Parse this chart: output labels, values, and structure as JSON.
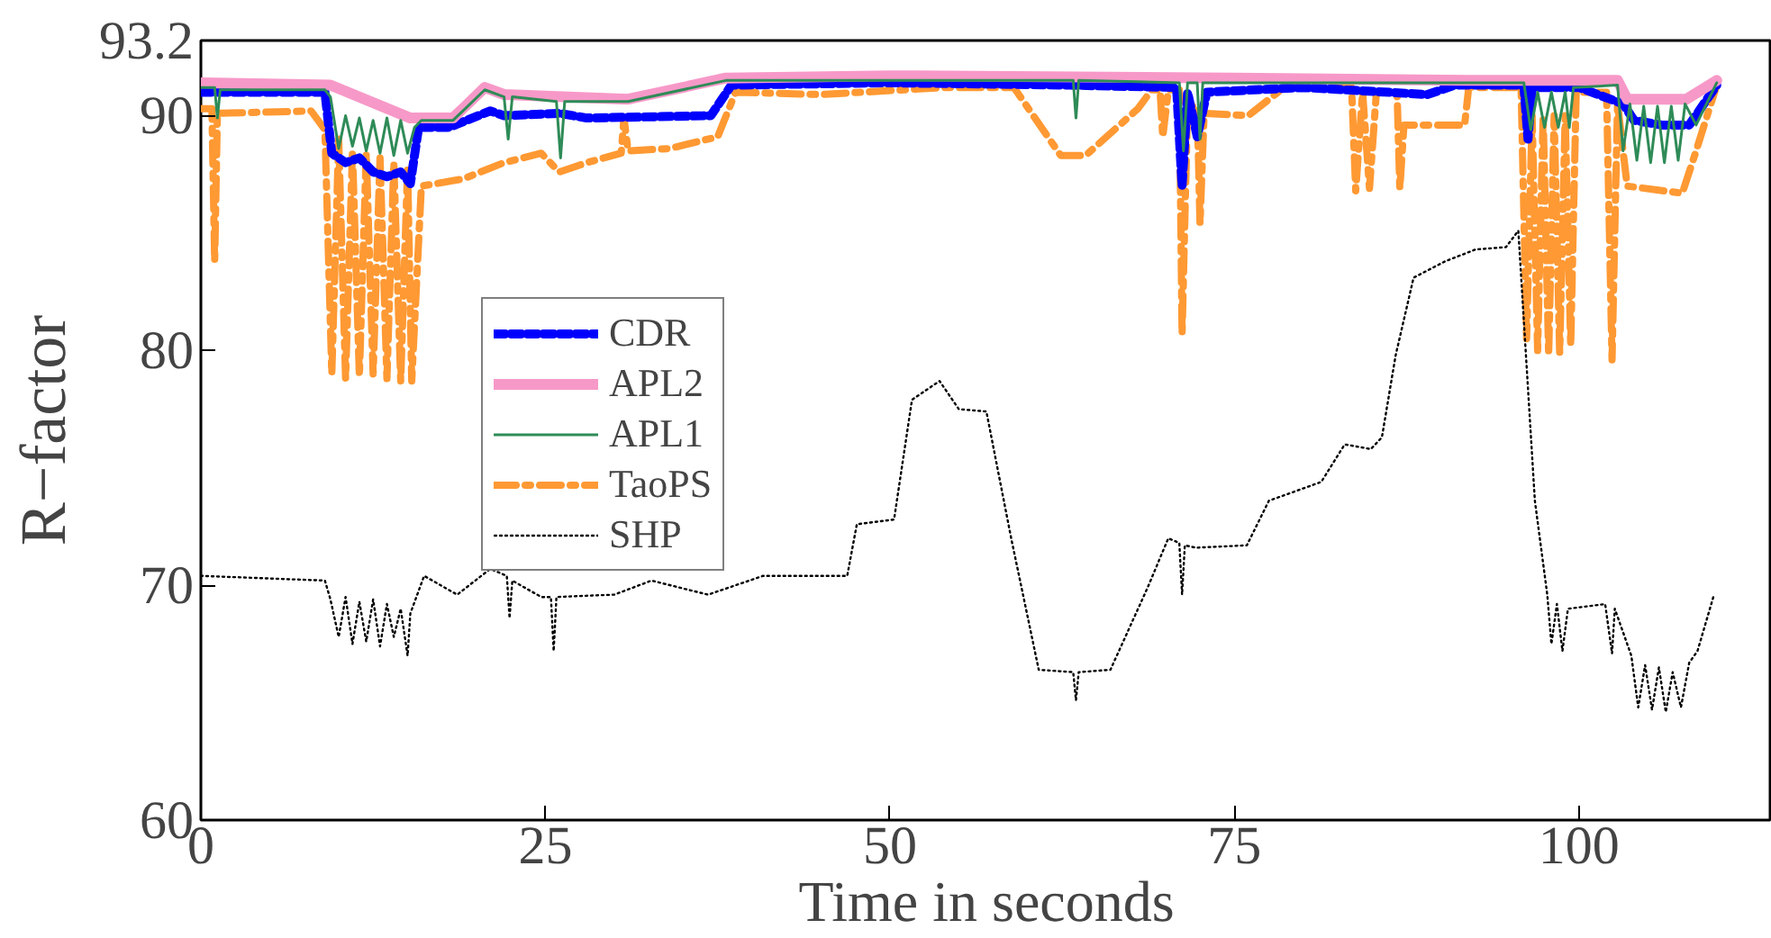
{
  "chart_data": {
    "type": "line",
    "xlabel": "Time in seconds",
    "ylabel": "R−factor",
    "xlim": [
      0,
      114
    ],
    "xticks": [
      0,
      25,
      50,
      75,
      100
    ],
    "ylim": [
      60,
      93.2
    ],
    "yticks": [
      60,
      70,
      80,
      90,
      93.2
    ],
    "legend": "left",
    "marker": "none",
    "series": [
      {
        "name": "CDR",
        "color": "#0000ff",
        "line_style": "dashed",
        "x": [
          0,
          9,
          9.5,
          10.5,
          11.5,
          12.5,
          13.5,
          14.5,
          15.2,
          15.8,
          18,
          21,
          22,
          26,
          28,
          37,
          38.5,
          50,
          63,
          70.8,
          71.2,
          71.6,
          72.3,
          73,
          80,
          89,
          91,
          96,
          96.3,
          96.6,
          100,
          103.2,
          104,
          106,
          108,
          110
        ],
        "values": [
          91.0,
          91.0,
          88.4,
          88.0,
          88.2,
          87.6,
          87.4,
          87.6,
          87.1,
          89.5,
          89.5,
          90.2,
          90.0,
          90.1,
          89.9,
          90.0,
          91.3,
          91.4,
          91.3,
          91.2,
          87.0,
          91.0,
          89.1,
          91.0,
          91.2,
          90.9,
          91.3,
          91.3,
          89.0,
          91.2,
          91.2,
          90.5,
          89.8,
          89.6,
          89.6,
          91.3
        ]
      },
      {
        "name": "APL2",
        "color": "#f799c8",
        "line_style": "solid",
        "x": [
          0,
          9.4,
          15.2,
          18.3,
          20.6,
          22,
          31,
          38.1,
          50,
          75,
          92,
          102.8,
          103.5,
          107.8,
          110
        ],
        "values": [
          91.4,
          91.3,
          89.9,
          89.9,
          91.2,
          90.9,
          90.7,
          91.6,
          91.7,
          91.6,
          91.5,
          91.5,
          90.7,
          90.7,
          91.5
        ]
      },
      {
        "name": "APL1",
        "color": "#2e8b57",
        "line_style": "solid",
        "x": [
          0,
          1,
          1.2,
          1.4,
          9,
          9.4,
          10,
          10.5,
          11,
          11.5,
          12,
          12.5,
          13,
          13.5,
          14,
          14.5,
          15,
          15.5,
          16,
          18.3,
          20.6,
          22,
          22.3,
          22.6,
          25.8,
          26.1,
          26.4,
          31,
          38.1,
          63.3,
          63.5,
          63.7,
          71,
          71.3,
          71.6,
          72.3,
          72.5,
          72.7,
          88,
          96,
          96.5,
          97,
          97.5,
          98,
          98.5,
          99,
          99.3,
          99.6,
          102.8,
          103.2,
          103.7,
          104.2,
          104.7,
          105.2,
          105.7,
          106.2,
          106.7,
          107.2,
          107.7,
          108.5,
          110
        ],
        "values": [
          91.2,
          91.2,
          89.9,
          91.1,
          91.1,
          90.8,
          88.6,
          90.0,
          88.7,
          89.9,
          88.5,
          89.8,
          88.4,
          89.9,
          88.3,
          89.8,
          88.4,
          89.5,
          89.8,
          89.8,
          91.1,
          90.8,
          89.0,
          90.8,
          90.6,
          88.2,
          90.6,
          90.6,
          91.5,
          91.5,
          89.9,
          91.5,
          91.4,
          88.5,
          91.4,
          91.4,
          89.0,
          91.4,
          91.4,
          91.4,
          89.4,
          91.0,
          89.5,
          91.0,
          89.5,
          91.0,
          89.5,
          91.2,
          91.3,
          88.5,
          90.5,
          88.1,
          90.4,
          88.0,
          90.4,
          88.0,
          90.4,
          88.1,
          90.5,
          89.6,
          91.4
        ]
      },
      {
        "name": "TaoPS",
        "color": "#ff9933",
        "line_style": "dashdot",
        "x": [
          0,
          0.8,
          1,
          1.2,
          8,
          9,
          9.5,
          10,
          10.5,
          11,
          11.5,
          12,
          12.5,
          13,
          13.5,
          14,
          14.5,
          15,
          15.3,
          16,
          19,
          22,
          24.7,
          26,
          28,
          30.5,
          30.7,
          31,
          34,
          37.5,
          38.8,
          45,
          54,
          59,
          62.4,
          64.2,
          68,
          69,
          69.6,
          69.8,
          70.2,
          71,
          71.2,
          71.6,
          72.3,
          72.5,
          72.8,
          76,
          78.6,
          83.5,
          83.8,
          84.3,
          84.8,
          85.3,
          86.8,
          87,
          87.3,
          91.7,
          92,
          95.8,
          96.2,
          96.6,
          97,
          97.4,
          97.8,
          98.2,
          98.6,
          99,
          99.4,
          99.8,
          102,
          102.4,
          102.8,
          103.5,
          107.5,
          108.5,
          110
        ],
        "values": [
          90.3,
          90.3,
          83.8,
          90.1,
          90.2,
          89.4,
          79.0,
          89.0,
          78.8,
          88.5,
          78.9,
          88.4,
          79.0,
          88.2,
          78.8,
          88.0,
          78.7,
          87.8,
          78.7,
          87.0,
          87.3,
          88.0,
          88.4,
          87.6,
          88.0,
          88.4,
          89.9,
          88.5,
          88.6,
          89.1,
          91.0,
          90.9,
          91.2,
          91.2,
          88.3,
          88.3,
          90.3,
          91.1,
          91.1,
          89.1,
          91.1,
          91.1,
          80.7,
          90.4,
          90.4,
          85.4,
          90.1,
          90.0,
          91.2,
          91.2,
          86.8,
          91.0,
          86.9,
          91.0,
          91.0,
          86.9,
          89.6,
          89.6,
          91.2,
          91.2,
          80.5,
          90.0,
          80.0,
          90.0,
          79.8,
          90.0,
          79.9,
          90.0,
          80.2,
          91.0,
          91.0,
          79.6,
          90.5,
          87.0,
          86.7,
          88.5,
          91.3
        ]
      },
      {
        "name": "SHP",
        "color": "#000000",
        "line_style": "dotted",
        "x": [
          0,
          9,
          9.4,
          10,
          10.5,
          11,
          11.5,
          12,
          12.5,
          13,
          13.5,
          14,
          14.5,
          15,
          15.2,
          16.2,
          18.6,
          21,
          22.2,
          22.4,
          22.6,
          24.7,
          25.4,
          25.6,
          25.8,
          30,
          32.7,
          36.8,
          40.8,
          46.9,
          47.6,
          50.3,
          51.6,
          53.6,
          55,
          57,
          58.8,
          60.8,
          63.3,
          63.5,
          63.7,
          66,
          68.7,
          70.2,
          71,
          71.2,
          71.4,
          72.2,
          75.9,
          77.5,
          81.3,
          83,
          84.9,
          85.7,
          86.7,
          88,
          90.3,
          92.5,
          94.7,
          95.6,
          96.1,
          96.8,
          97.7,
          98,
          98.4,
          98.8,
          99.2,
          101.9,
          102.4,
          102.6,
          103.8,
          104.3,
          104.8,
          105.3,
          105.8,
          106.3,
          106.8,
          107.4,
          108,
          108.6,
          109.8
        ],
        "values": [
          70.4,
          70.2,
          69.4,
          67.8,
          69.5,
          67.5,
          69.3,
          67.6,
          69.4,
          67.4,
          69.2,
          67.8,
          69.0,
          67.0,
          68.8,
          70.4,
          69.6,
          70.7,
          70.4,
          68.6,
          70.2,
          69.5,
          69.5,
          67.2,
          69.5,
          69.6,
          70.2,
          69.6,
          70.4,
          70.4,
          72.6,
          72.8,
          77.9,
          78.7,
          77.5,
          77.4,
          72.0,
          66.4,
          66.3,
          65.1,
          66.3,
          66.4,
          69.9,
          72.0,
          71.8,
          69.6,
          71.7,
          71.6,
          71.7,
          73.6,
          74.4,
          76.0,
          75.8,
          76.3,
          79.8,
          83.1,
          83.8,
          84.3,
          84.4,
          85.1,
          80.3,
          73.6,
          69.6,
          67.5,
          69.2,
          67.2,
          69.0,
          69.2,
          67.1,
          69.0,
          67.0,
          64.8,
          66.6,
          64.7,
          66.5,
          64.6,
          66.3,
          64.8,
          66.7,
          67.2,
          69.6
        ]
      }
    ]
  }
}
